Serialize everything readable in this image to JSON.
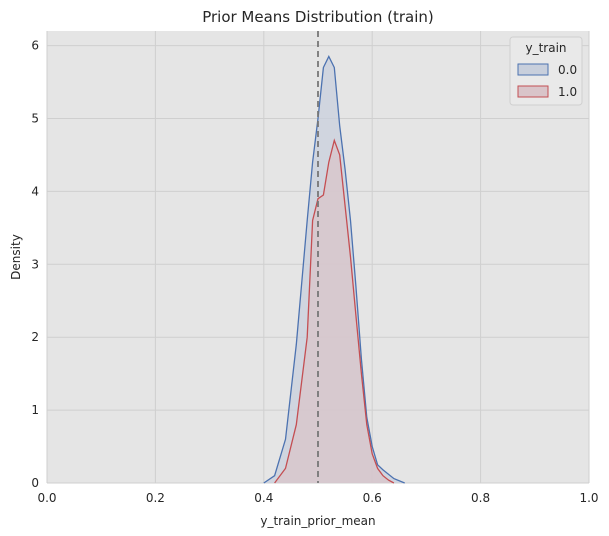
{
  "chart_data": {
    "type": "area",
    "title": "Prior Means Distribution (train)",
    "xlabel": "y_train_prior_mean",
    "ylabel": "Density",
    "xlim": [
      0,
      1
    ],
    "ylim": [
      0,
      6.2
    ],
    "xticks": [
      "0.0",
      "0.2",
      "0.4",
      "0.6",
      "0.8",
      "1.0"
    ],
    "yticks": [
      "0",
      "1",
      "2",
      "3",
      "4",
      "5",
      "6"
    ],
    "xtick_values": [
      0,
      0.2,
      0.4,
      0.6,
      0.8,
      1.0
    ],
    "ytick_values": [
      0,
      1,
      2,
      3,
      4,
      5,
      6
    ],
    "grid": true,
    "background": "#e5e5e5",
    "vline": {
      "x": 0.5,
      "style": "dashed",
      "color": "#777777"
    },
    "legend": {
      "title": "y_train",
      "placement": "top-right",
      "entries": [
        "0.0",
        "1.0"
      ]
    },
    "series": [
      {
        "name": "0.0",
        "color": "#4c72b0",
        "fill": "#c8cfdc",
        "x": [
          0.4,
          0.42,
          0.44,
          0.46,
          0.48,
          0.49,
          0.5,
          0.51,
          0.52,
          0.53,
          0.54,
          0.55,
          0.56,
          0.57,
          0.58,
          0.59,
          0.6,
          0.61,
          0.62,
          0.64,
          0.66
        ],
        "y": [
          0,
          0.1,
          0.6,
          1.9,
          3.6,
          4.4,
          5.0,
          5.7,
          5.85,
          5.7,
          4.9,
          4.3,
          3.6,
          2.7,
          1.7,
          0.9,
          0.5,
          0.25,
          0.18,
          0.06,
          0
        ]
      },
      {
        "name": "1.0",
        "color": "#c44e52",
        "fill": "#d9c4c9",
        "x": [
          0.42,
          0.44,
          0.46,
          0.48,
          0.49,
          0.5,
          0.51,
          0.52,
          0.53,
          0.54,
          0.55,
          0.56,
          0.57,
          0.58,
          0.59,
          0.6,
          0.61,
          0.62,
          0.63,
          0.64
        ],
        "y": [
          0,
          0.2,
          0.8,
          2.0,
          3.6,
          3.9,
          3.95,
          4.4,
          4.7,
          4.5,
          3.8,
          3.1,
          2.3,
          1.5,
          0.8,
          0.4,
          0.2,
          0.1,
          0.04,
          0
        ]
      }
    ]
  }
}
